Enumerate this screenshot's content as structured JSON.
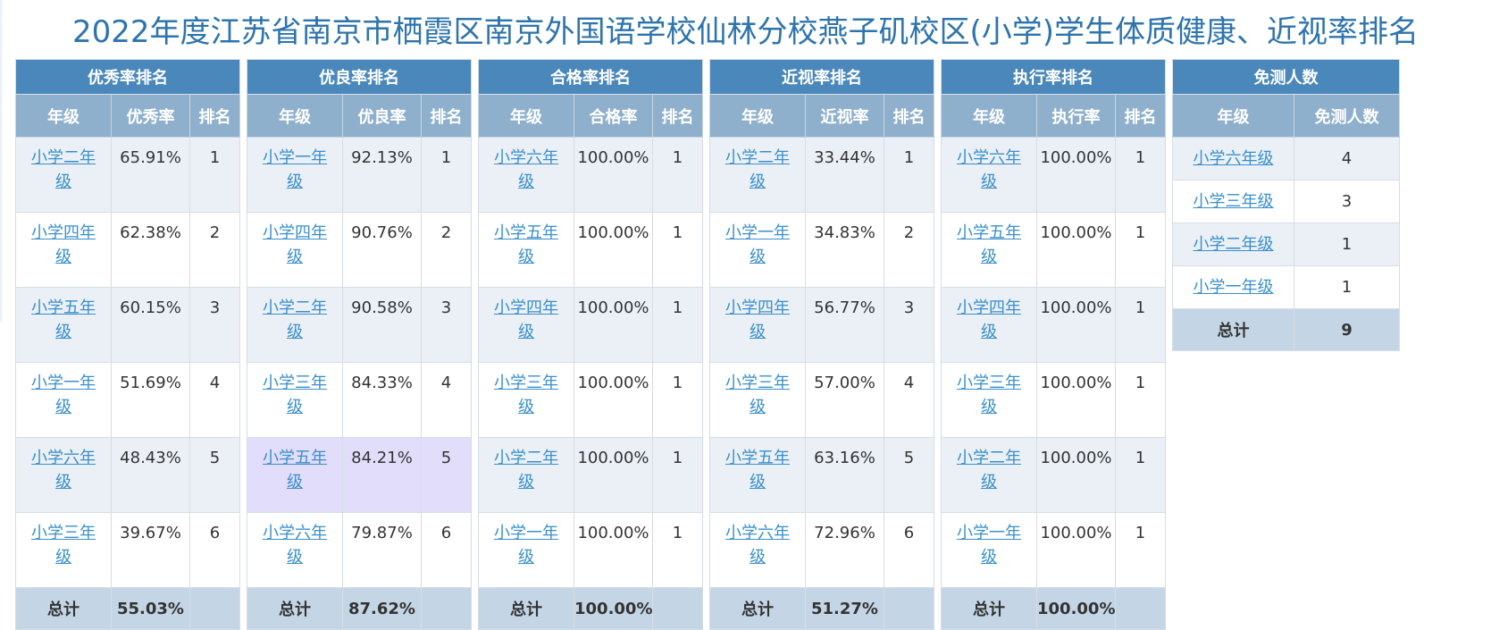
{
  "page_title": "2022年度江苏省南京市栖霞区南京外国语学校仙林分校燕子矶校区(小学)学生体质健康、近视率排名",
  "tables": [
    {
      "title": "优秀率排名",
      "columns": [
        "年级",
        "优秀率",
        "排名"
      ],
      "rows": [
        {
          "grade": "小学二年级",
          "value": "65.91%",
          "rank": "1"
        },
        {
          "grade": "小学四年级",
          "value": "62.38%",
          "rank": "2"
        },
        {
          "grade": "小学五年级",
          "value": "60.15%",
          "rank": "3"
        },
        {
          "grade": "小学一年级",
          "value": "51.69%",
          "rank": "4"
        },
        {
          "grade": "小学六年级",
          "value": "48.43%",
          "rank": "5"
        },
        {
          "grade": "小学三年级",
          "value": "39.67%",
          "rank": "6"
        }
      ],
      "total_label": "总计",
      "total_value": "55.03%"
    },
    {
      "title": "优良率排名",
      "columns": [
        "年级",
        "优良率",
        "排名"
      ],
      "rows": [
        {
          "grade": "小学一年级",
          "value": "92.13%",
          "rank": "1"
        },
        {
          "grade": "小学四年级",
          "value": "90.76%",
          "rank": "2"
        },
        {
          "grade": "小学二年级",
          "value": "90.58%",
          "rank": "3"
        },
        {
          "grade": "小学三年级",
          "value": "84.33%",
          "rank": "4"
        },
        {
          "grade": "小学五年级",
          "value": "84.21%",
          "rank": "5"
        },
        {
          "grade": "小学六年级",
          "value": "79.87%",
          "rank": "6"
        }
      ],
      "total_label": "总计",
      "total_value": "87.62%"
    },
    {
      "title": "合格率排名",
      "columns": [
        "年级",
        "合格率",
        "排名"
      ],
      "rows": [
        {
          "grade": "小学六年级",
          "value": "100.00%",
          "rank": "1"
        },
        {
          "grade": "小学五年级",
          "value": "100.00%",
          "rank": "1"
        },
        {
          "grade": "小学四年级",
          "value": "100.00%",
          "rank": "1"
        },
        {
          "grade": "小学三年级",
          "value": "100.00%",
          "rank": "1"
        },
        {
          "grade": "小学二年级",
          "value": "100.00%",
          "rank": "1"
        },
        {
          "grade": "小学一年级",
          "value": "100.00%",
          "rank": "1"
        }
      ],
      "total_label": "总计",
      "total_value": "100.00%"
    },
    {
      "title": "近视率排名",
      "columns": [
        "年级",
        "近视率",
        "排名"
      ],
      "rows": [
        {
          "grade": "小学二年级",
          "value": "33.44%",
          "rank": "1"
        },
        {
          "grade": "小学一年级",
          "value": "34.83%",
          "rank": "2"
        },
        {
          "grade": "小学四年级",
          "value": "56.77%",
          "rank": "3"
        },
        {
          "grade": "小学三年级",
          "value": "57.00%",
          "rank": "4"
        },
        {
          "grade": "小学五年级",
          "value": "63.16%",
          "rank": "5"
        },
        {
          "grade": "小学六年级",
          "value": "72.96%",
          "rank": "6"
        }
      ],
      "total_label": "总计",
      "total_value": "51.27%"
    },
    {
      "title": "执行率排名",
      "columns": [
        "年级",
        "执行率",
        "排名"
      ],
      "rows": [
        {
          "grade": "小学六年级",
          "value": "100.00%",
          "rank": "1"
        },
        {
          "grade": "小学五年级",
          "value": "100.00%",
          "rank": "1"
        },
        {
          "grade": "小学四年级",
          "value": "100.00%",
          "rank": "1"
        },
        {
          "grade": "小学三年级",
          "value": "100.00%",
          "rank": "1"
        },
        {
          "grade": "小学二年级",
          "value": "100.00%",
          "rank": "1"
        },
        {
          "grade": "小学一年级",
          "value": "100.00%",
          "rank": "1"
        }
      ],
      "total_label": "总计",
      "total_value": "100.00%"
    }
  ],
  "exempt": {
    "title": "免测人数",
    "columns": [
      "年级",
      "免测人数"
    ],
    "rows": [
      {
        "grade": "小学六年级",
        "count": "4"
      },
      {
        "grade": "小学三年级",
        "count": "3"
      },
      {
        "grade": "小学二年级",
        "count": "1"
      },
      {
        "grade": "小学一年级",
        "count": "1"
      }
    ],
    "total_label": "总计",
    "total_value": "9"
  }
}
